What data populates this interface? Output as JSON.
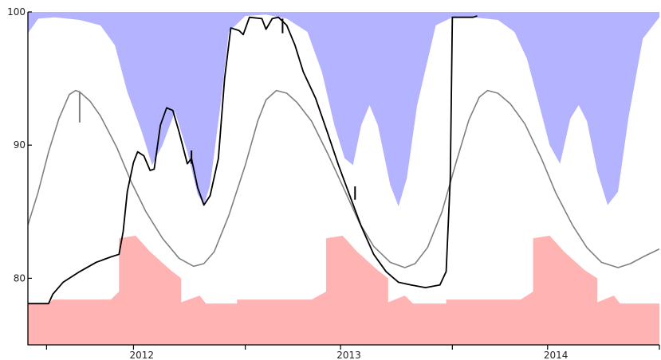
{
  "chart_data": {
    "type": "area",
    "title": "",
    "xlabel": "",
    "ylabel": "",
    "xlim": [
      2011.45,
      2014.5
    ],
    "ylim": [
      75,
      100
    ],
    "y_ticks": [
      80,
      90,
      100
    ],
    "y_tick_labels": [
      "80",
      "90",
      "100"
    ],
    "x_tick_labels": [
      {
        "x": 2012.0,
        "label": "2012"
      },
      {
        "x": 2013.0,
        "label": "2013"
      },
      {
        "x": 2014.0,
        "label": "2014"
      }
    ],
    "x_minor_ticks": [
      2011.54,
      2011.96,
      2012.5,
      2012.96,
      2013.5,
      2013.96,
      2014.5
    ],
    "grid": false,
    "colors": {
      "upper_band": "#b3b3ff",
      "lower_band": "#ffb3b3",
      "observed": "#000000",
      "mean": "#808080",
      "axis": "#000000"
    },
    "series": [
      {
        "role": "upper_band",
        "values": [
          [
            2011.45,
            98.4
          ],
          [
            2011.5,
            99.5
          ],
          [
            2011.58,
            99.6
          ],
          [
            2011.7,
            99.4
          ],
          [
            2011.8,
            99.0
          ],
          [
            2011.87,
            97.5
          ],
          [
            2011.93,
            94.0
          ],
          [
            2012.0,
            91.0
          ],
          [
            2012.05,
            88.5
          ],
          [
            2012.1,
            90.0
          ],
          [
            2012.16,
            92.5
          ],
          [
            2012.22,
            89.5
          ],
          [
            2012.27,
            86.3
          ],
          [
            2012.3,
            85.5
          ],
          [
            2012.33,
            87.0
          ],
          [
            2012.38,
            93.0
          ],
          [
            2012.42,
            98.5
          ],
          [
            2012.5,
            99.7
          ],
          [
            2012.6,
            99.8
          ],
          [
            2012.7,
            99.5
          ],
          [
            2012.8,
            98.5
          ],
          [
            2012.87,
            95.5
          ],
          [
            2012.93,
            91.5
          ],
          [
            2012.98,
            89.0
          ],
          [
            2013.02,
            88.5
          ],
          [
            2013.06,
            91.5
          ],
          [
            2013.1,
            93.0
          ],
          [
            2013.14,
            91.5
          ],
          [
            2013.2,
            87.0
          ],
          [
            2013.24,
            85.4
          ],
          [
            2013.28,
            87.5
          ],
          [
            2013.33,
            93.0
          ],
          [
            2013.42,
            99.0
          ],
          [
            2013.5,
            99.6
          ],
          [
            2013.6,
            99.6
          ],
          [
            2013.72,
            99.4
          ],
          [
            2013.8,
            98.5
          ],
          [
            2013.86,
            96.5
          ],
          [
            2013.92,
            93.0
          ],
          [
            2013.97,
            90.0
          ],
          [
            2014.02,
            88.6
          ],
          [
            2014.07,
            92.0
          ],
          [
            2014.11,
            93.0
          ],
          [
            2014.15,
            91.8
          ],
          [
            2014.2,
            88.0
          ],
          [
            2014.25,
            85.5
          ],
          [
            2014.3,
            86.5
          ],
          [
            2014.35,
            92.0
          ],
          [
            2014.42,
            98.0
          ],
          [
            2014.5,
            99.6
          ]
        ]
      },
      {
        "role": "lower_band",
        "values": [
          [
            2011.45,
            78.1
          ],
          [
            2011.55,
            78.1
          ],
          [
            2011.57,
            78.4
          ],
          [
            2011.85,
            78.4
          ],
          [
            2011.89,
            79.0
          ],
          [
            2011.89,
            83.0
          ],
          [
            2011.97,
            83.2
          ],
          [
            2012.04,
            82.0
          ],
          [
            2012.14,
            80.6
          ],
          [
            2012.19,
            80.0
          ],
          [
            2012.19,
            78.2
          ],
          [
            2012.28,
            78.7
          ],
          [
            2012.31,
            78.1
          ],
          [
            2012.46,
            78.1
          ],
          [
            2012.46,
            78.4
          ],
          [
            2012.82,
            78.4
          ],
          [
            2012.89,
            79.0
          ],
          [
            2012.89,
            83.0
          ],
          [
            2012.97,
            83.2
          ],
          [
            2013.04,
            82.0
          ],
          [
            2013.14,
            80.6
          ],
          [
            2013.19,
            80.0
          ],
          [
            2013.19,
            78.2
          ],
          [
            2013.27,
            78.7
          ],
          [
            2013.31,
            78.1
          ],
          [
            2013.47,
            78.1
          ],
          [
            2013.47,
            78.4
          ],
          [
            2013.83,
            78.4
          ],
          [
            2013.89,
            79.0
          ],
          [
            2013.89,
            83.0
          ],
          [
            2013.97,
            83.2
          ],
          [
            2014.04,
            82.0
          ],
          [
            2014.14,
            80.6
          ],
          [
            2014.2,
            80.0
          ],
          [
            2014.2,
            78.2
          ],
          [
            2014.28,
            78.7
          ],
          [
            2014.31,
            78.1
          ],
          [
            2014.5,
            78.1
          ]
        ]
      },
      {
        "role": "mean",
        "values": [
          [
            2011.45,
            84.0
          ],
          [
            2011.5,
            86.5
          ],
          [
            2011.55,
            89.5
          ],
          [
            2011.6,
            92.0
          ],
          [
            2011.65,
            93.8
          ],
          [
            2011.68,
            94.1
          ],
          [
            2011.7,
            94.0
          ],
          [
            2011.75,
            93.3
          ],
          [
            2011.8,
            92.2
          ],
          [
            2011.88,
            89.8
          ],
          [
            2011.95,
            87.2
          ],
          [
            2012.02,
            85.0
          ],
          [
            2012.1,
            83.0
          ],
          [
            2012.18,
            81.5
          ],
          [
            2012.25,
            80.9
          ],
          [
            2012.3,
            81.1
          ],
          [
            2012.35,
            82.0
          ],
          [
            2012.42,
            84.7
          ],
          [
            2012.5,
            88.5
          ],
          [
            2012.56,
            91.8
          ],
          [
            2012.6,
            93.4
          ],
          [
            2012.65,
            94.1
          ],
          [
            2012.7,
            93.9
          ],
          [
            2012.75,
            93.2
          ],
          [
            2012.82,
            91.8
          ],
          [
            2012.9,
            89.3
          ],
          [
            2012.98,
            86.6
          ],
          [
            2013.05,
            84.2
          ],
          [
            2013.12,
            82.4
          ],
          [
            2013.2,
            81.2
          ],
          [
            2013.27,
            80.8
          ],
          [
            2013.32,
            81.1
          ],
          [
            2013.38,
            82.3
          ],
          [
            2013.45,
            85.0
          ],
          [
            2013.52,
            88.8
          ],
          [
            2013.58,
            91.9
          ],
          [
            2013.63,
            93.6
          ],
          [
            2013.67,
            94.1
          ],
          [
            2013.72,
            93.9
          ],
          [
            2013.78,
            93.1
          ],
          [
            2013.85,
            91.6
          ],
          [
            2013.93,
            89.0
          ],
          [
            2014.0,
            86.4
          ],
          [
            2014.08,
            84.0
          ],
          [
            2014.15,
            82.3
          ],
          [
            2014.22,
            81.2
          ],
          [
            2014.3,
            80.8
          ],
          [
            2014.36,
            81.1
          ],
          [
            2014.42,
            81.6
          ],
          [
            2014.5,
            82.2
          ]
        ]
      },
      {
        "role": "observed",
        "values": [
          [
            2011.45,
            78.1
          ],
          [
            2011.55,
            78.1
          ],
          [
            2011.57,
            78.8
          ],
          [
            2011.62,
            79.7
          ],
          [
            2011.7,
            80.5
          ],
          [
            2011.78,
            81.2
          ],
          [
            2011.85,
            81.6
          ],
          [
            2011.89,
            81.8
          ],
          [
            2011.91,
            83.5
          ],
          [
            2011.93,
            86.5
          ],
          [
            2011.96,
            88.7
          ],
          [
            2011.98,
            89.5
          ],
          [
            2012.01,
            89.2
          ],
          [
            2012.04,
            88.1
          ],
          [
            2012.06,
            88.2
          ],
          [
            2012.09,
            91.5
          ],
          [
            2012.12,
            92.8
          ],
          [
            2012.15,
            92.6
          ],
          [
            2012.18,
            91.0
          ],
          [
            2012.22,
            88.6
          ],
          [
            2012.24,
            89.0
          ],
          [
            2012.27,
            86.8
          ],
          [
            2012.3,
            85.5
          ],
          [
            2012.33,
            86.2
          ],
          [
            2012.37,
            89.0
          ],
          [
            2012.4,
            95.0
          ],
          [
            2012.43,
            98.8
          ],
          [
            2012.47,
            98.6
          ],
          [
            2012.49,
            98.3
          ],
          [
            2012.52,
            99.6
          ],
          [
            2012.58,
            99.5
          ],
          [
            2012.6,
            98.7
          ],
          [
            2012.63,
            99.5
          ],
          [
            2012.66,
            99.6
          ],
          [
            2012.7,
            99.0
          ],
          [
            2012.74,
            97.5
          ],
          [
            2012.78,
            95.5
          ],
          [
            2012.84,
            93.5
          ],
          [
            2012.9,
            90.8
          ],
          [
            2012.95,
            88.5
          ],
          [
            2013.0,
            86.4
          ],
          [
            2013.06,
            83.9
          ],
          [
            2013.12,
            81.8
          ],
          [
            2013.18,
            80.5
          ],
          [
            2013.24,
            79.7
          ],
          [
            2013.3,
            79.5
          ],
          [
            2013.37,
            79.3
          ],
          [
            2013.44,
            79.5
          ],
          [
            2013.47,
            80.5
          ],
          [
            2013.49,
            87.5
          ],
          [
            2013.5,
            99.6
          ],
          [
            2013.6,
            99.6
          ],
          [
            2013.62,
            99.7
          ]
        ],
        "spikes": [
          {
            "x": 2012.24,
            "y_from": 88.6,
            "y_to": 89.6
          },
          {
            "x": 2012.68,
            "y_from": 99.5,
            "y_to": 98.4
          },
          {
            "x": 2013.03,
            "y_from": 86.9,
            "y_to": 85.9
          }
        ]
      }
    ],
    "mean_spike": {
      "x": 2011.7,
      "y_from": 94.0,
      "y_to": 91.7
    }
  }
}
